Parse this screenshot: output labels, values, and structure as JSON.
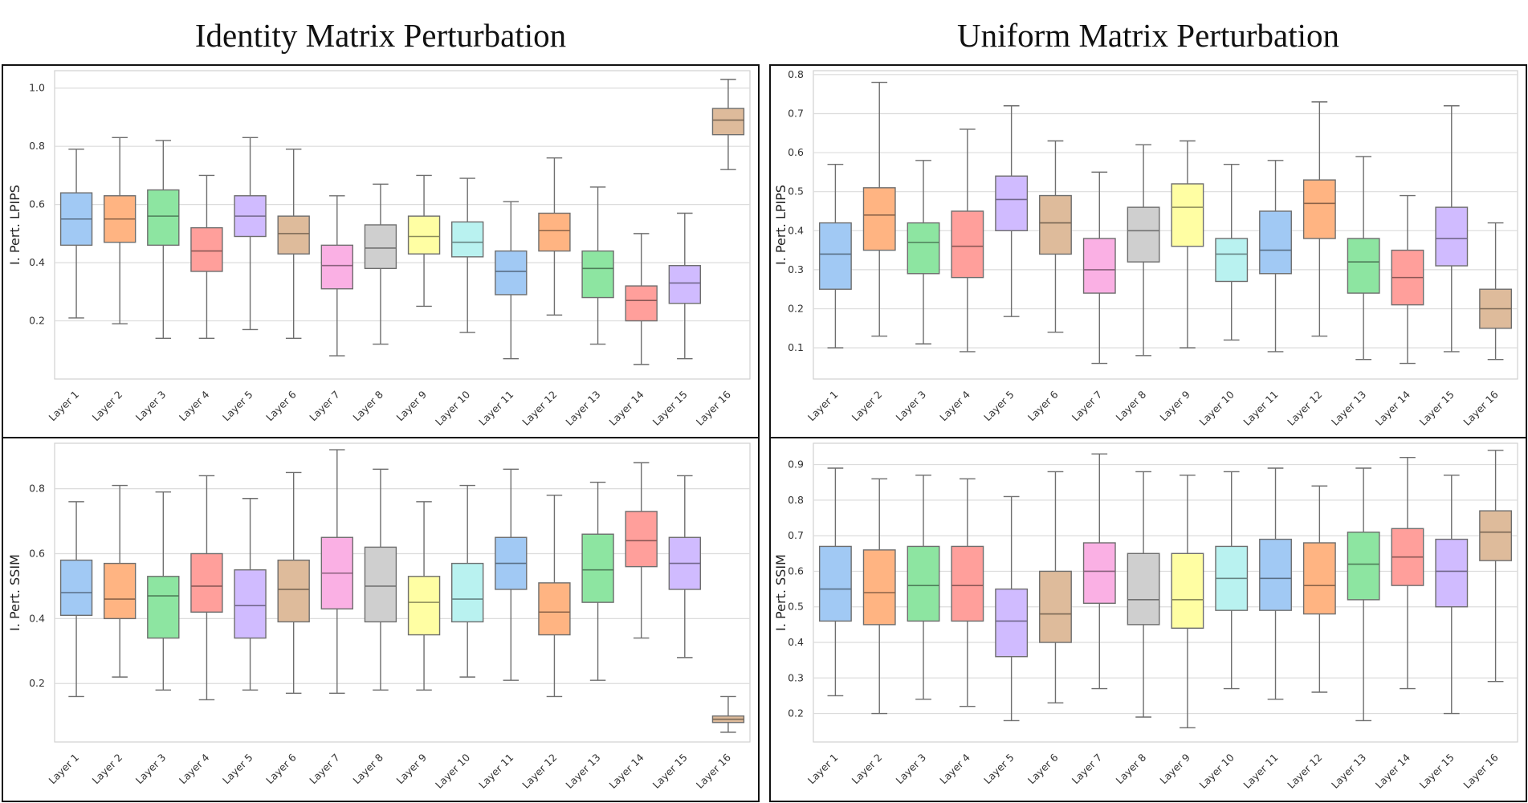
{
  "titles": {
    "left": "Identity Matrix Perturbation",
    "right": "Uniform Matrix Perturbation"
  },
  "palette": [
    "#a1c9f4",
    "#ffb482",
    "#8de5a1",
    "#ff9f9b",
    "#d0bbff",
    "#debb9b",
    "#fab0e4",
    "#cfcfcf",
    "#fffea3",
    "#b9f2f0",
    "#a1c9f4",
    "#ffb482",
    "#8de5a1",
    "#ff9f9b",
    "#d0bbff",
    "#debb9b"
  ],
  "chart_data": [
    {
      "id": "identity-lpips",
      "type": "box",
      "title": "Identity Matrix Perturbation",
      "ylabel": "I. Pert. LPIPS",
      "ylim": [
        0.0,
        1.06
      ],
      "yticks": [
        0.2,
        0.4,
        0.6,
        0.8,
        1.0
      ],
      "ytick_labels": [
        "0.2",
        "0.4",
        "0.6",
        "0.8",
        "1.0"
      ],
      "categories": [
        "Layer 1",
        "Layer 2",
        "Layer 3",
        "Layer 4",
        "Layer 5",
        "Layer 6",
        "Layer 7",
        "Layer 8",
        "Layer 9",
        "Layer 10",
        "Layer 11",
        "Layer 12",
        "Layer 13",
        "Layer 14",
        "Layer 15",
        "Layer 16"
      ],
      "boxes": [
        {
          "min": 0.21,
          "q1": 0.46,
          "median": 0.55,
          "q3": 0.64,
          "max": 0.79
        },
        {
          "min": 0.19,
          "q1": 0.47,
          "median": 0.55,
          "q3": 0.63,
          "max": 0.83
        },
        {
          "min": 0.14,
          "q1": 0.46,
          "median": 0.56,
          "q3": 0.65,
          "max": 0.82
        },
        {
          "min": 0.14,
          "q1": 0.37,
          "median": 0.44,
          "q3": 0.52,
          "max": 0.7
        },
        {
          "min": 0.17,
          "q1": 0.49,
          "median": 0.56,
          "q3": 0.63,
          "max": 0.83
        },
        {
          "min": 0.14,
          "q1": 0.43,
          "median": 0.5,
          "q3": 0.56,
          "max": 0.79
        },
        {
          "min": 0.08,
          "q1": 0.31,
          "median": 0.39,
          "q3": 0.46,
          "max": 0.63
        },
        {
          "min": 0.12,
          "q1": 0.38,
          "median": 0.45,
          "q3": 0.53,
          "max": 0.67
        },
        {
          "min": 0.25,
          "q1": 0.43,
          "median": 0.49,
          "q3": 0.56,
          "max": 0.7
        },
        {
          "min": 0.16,
          "q1": 0.42,
          "median": 0.47,
          "q3": 0.54,
          "max": 0.69
        },
        {
          "min": 0.07,
          "q1": 0.29,
          "median": 0.37,
          "q3": 0.44,
          "max": 0.61
        },
        {
          "min": 0.22,
          "q1": 0.44,
          "median": 0.51,
          "q3": 0.57,
          "max": 0.76
        },
        {
          "min": 0.12,
          "q1": 0.28,
          "median": 0.38,
          "q3": 0.44,
          "max": 0.66
        },
        {
          "min": 0.05,
          "q1": 0.2,
          "median": 0.27,
          "q3": 0.32,
          "max": 0.5
        },
        {
          "min": 0.07,
          "q1": 0.26,
          "median": 0.33,
          "q3": 0.39,
          "max": 0.57
        },
        {
          "min": 0.72,
          "q1": 0.84,
          "median": 0.89,
          "q3": 0.93,
          "max": 1.03
        }
      ]
    },
    {
      "id": "identity-ssim",
      "type": "box",
      "title": "",
      "ylabel": "I. Pert. SSIM",
      "ylim": [
        0.02,
        0.94
      ],
      "yticks": [
        0.2,
        0.4,
        0.6,
        0.8
      ],
      "ytick_labels": [
        "0.2",
        "0.4",
        "0.6",
        "0.8"
      ],
      "categories": [
        "Layer 1",
        "Layer 2",
        "Layer 3",
        "Layer 4",
        "Layer 5",
        "Layer 6",
        "Layer 7",
        "Layer 8",
        "Layer 9",
        "Layer 10",
        "Layer 11",
        "Layer 12",
        "Layer 13",
        "Layer 14",
        "Layer 15",
        "Layer 16"
      ],
      "boxes": [
        {
          "min": 0.16,
          "q1": 0.41,
          "median": 0.48,
          "q3": 0.58,
          "max": 0.76
        },
        {
          "min": 0.22,
          "q1": 0.4,
          "median": 0.46,
          "q3": 0.57,
          "max": 0.81
        },
        {
          "min": 0.18,
          "q1": 0.34,
          "median": 0.47,
          "q3": 0.53,
          "max": 0.79
        },
        {
          "min": 0.15,
          "q1": 0.42,
          "median": 0.5,
          "q3": 0.6,
          "max": 0.84
        },
        {
          "min": 0.18,
          "q1": 0.34,
          "median": 0.44,
          "q3": 0.55,
          "max": 0.77
        },
        {
          "min": 0.17,
          "q1": 0.39,
          "median": 0.49,
          "q3": 0.58,
          "max": 0.85
        },
        {
          "min": 0.17,
          "q1": 0.43,
          "median": 0.54,
          "q3": 0.65,
          "max": 0.92
        },
        {
          "min": 0.18,
          "q1": 0.39,
          "median": 0.5,
          "q3": 0.62,
          "max": 0.86
        },
        {
          "min": 0.18,
          "q1": 0.35,
          "median": 0.45,
          "q3": 0.53,
          "max": 0.76
        },
        {
          "min": 0.22,
          "q1": 0.39,
          "median": 0.46,
          "q3": 0.57,
          "max": 0.81
        },
        {
          "min": 0.21,
          "q1": 0.49,
          "median": 0.57,
          "q3": 0.65,
          "max": 0.86
        },
        {
          "min": 0.16,
          "q1": 0.35,
          "median": 0.42,
          "q3": 0.51,
          "max": 0.78
        },
        {
          "min": 0.21,
          "q1": 0.45,
          "median": 0.55,
          "q3": 0.66,
          "max": 0.82
        },
        {
          "min": 0.34,
          "q1": 0.56,
          "median": 0.64,
          "q3": 0.73,
          "max": 0.88
        },
        {
          "min": 0.28,
          "q1": 0.49,
          "median": 0.57,
          "q3": 0.65,
          "max": 0.84
        },
        {
          "min": 0.05,
          "q1": 0.08,
          "median": 0.09,
          "q3": 0.1,
          "max": 0.16
        }
      ]
    },
    {
      "id": "uniform-lpips",
      "type": "box",
      "title": "Uniform Matrix Perturbation",
      "ylabel": "I. Pert. LPIPS",
      "ylim": [
        0.02,
        0.81
      ],
      "yticks": [
        0.1,
        0.2,
        0.3,
        0.4,
        0.5,
        0.6,
        0.7,
        0.8
      ],
      "ytick_labels": [
        "0.1",
        "0.2",
        "0.3",
        "0.4",
        "0.5",
        "0.6",
        "0.7",
        "0.8"
      ],
      "categories": [
        "Layer 1",
        "Layer 2",
        "Layer 3",
        "Layer 4",
        "Layer 5",
        "Layer 6",
        "Layer 7",
        "Layer 8",
        "Layer 9",
        "Layer 10",
        "Layer 11",
        "Layer 12",
        "Layer 13",
        "Layer 14",
        "Layer 15",
        "Layer 16"
      ],
      "boxes": [
        {
          "min": 0.1,
          "q1": 0.25,
          "median": 0.34,
          "q3": 0.42,
          "max": 0.57
        },
        {
          "min": 0.13,
          "q1": 0.35,
          "median": 0.44,
          "q3": 0.51,
          "max": 0.78
        },
        {
          "min": 0.11,
          "q1": 0.29,
          "median": 0.37,
          "q3": 0.42,
          "max": 0.58
        },
        {
          "min": 0.09,
          "q1": 0.28,
          "median": 0.36,
          "q3": 0.45,
          "max": 0.66
        },
        {
          "min": 0.18,
          "q1": 0.4,
          "median": 0.48,
          "q3": 0.54,
          "max": 0.72
        },
        {
          "min": 0.14,
          "q1": 0.34,
          "median": 0.42,
          "q3": 0.49,
          "max": 0.63
        },
        {
          "min": 0.06,
          "q1": 0.24,
          "median": 0.3,
          "q3": 0.38,
          "max": 0.55
        },
        {
          "min": 0.08,
          "q1": 0.32,
          "median": 0.4,
          "q3": 0.46,
          "max": 0.62
        },
        {
          "min": 0.1,
          "q1": 0.36,
          "median": 0.46,
          "q3": 0.52,
          "max": 0.63
        },
        {
          "min": 0.12,
          "q1": 0.27,
          "median": 0.34,
          "q3": 0.38,
          "max": 0.57
        },
        {
          "min": 0.09,
          "q1": 0.29,
          "median": 0.35,
          "q3": 0.45,
          "max": 0.58
        },
        {
          "min": 0.13,
          "q1": 0.38,
          "median": 0.47,
          "q3": 0.53,
          "max": 0.73
        },
        {
          "min": 0.07,
          "q1": 0.24,
          "median": 0.32,
          "q3": 0.38,
          "max": 0.59
        },
        {
          "min": 0.06,
          "q1": 0.21,
          "median": 0.28,
          "q3": 0.35,
          "max": 0.49
        },
        {
          "min": 0.09,
          "q1": 0.31,
          "median": 0.38,
          "q3": 0.46,
          "max": 0.72
        },
        {
          "min": 0.07,
          "q1": 0.15,
          "median": 0.2,
          "q3": 0.25,
          "max": 0.42
        }
      ]
    },
    {
      "id": "uniform-ssim",
      "type": "box",
      "title": "",
      "ylabel": "I. Pert. SSIM",
      "ylim": [
        0.12,
        0.96
      ],
      "yticks": [
        0.2,
        0.3,
        0.4,
        0.5,
        0.6,
        0.7,
        0.8,
        0.9
      ],
      "ytick_labels": [
        "0.2",
        "0.3",
        "0.4",
        "0.5",
        "0.6",
        "0.7",
        "0.8",
        "0.9"
      ],
      "categories": [
        "Layer 1",
        "Layer 2",
        "Layer 3",
        "Layer 4",
        "Layer 5",
        "Layer 6",
        "Layer 7",
        "Layer 8",
        "Layer 9",
        "Layer 10",
        "Layer 11",
        "Layer 12",
        "Layer 13",
        "Layer 14",
        "Layer 15",
        "Layer 16"
      ],
      "boxes": [
        {
          "min": 0.25,
          "q1": 0.46,
          "median": 0.55,
          "q3": 0.67,
          "max": 0.89
        },
        {
          "min": 0.2,
          "q1": 0.45,
          "median": 0.54,
          "q3": 0.66,
          "max": 0.86
        },
        {
          "min": 0.24,
          "q1": 0.46,
          "median": 0.56,
          "q3": 0.67,
          "max": 0.87
        },
        {
          "min": 0.22,
          "q1": 0.46,
          "median": 0.56,
          "q3": 0.67,
          "max": 0.86
        },
        {
          "min": 0.18,
          "q1": 0.36,
          "median": 0.46,
          "q3": 0.55,
          "max": 0.81
        },
        {
          "min": 0.23,
          "q1": 0.4,
          "median": 0.48,
          "q3": 0.6,
          "max": 0.88
        },
        {
          "min": 0.27,
          "q1": 0.51,
          "median": 0.6,
          "q3": 0.68,
          "max": 0.93
        },
        {
          "min": 0.19,
          "q1": 0.45,
          "median": 0.52,
          "q3": 0.65,
          "max": 0.88
        },
        {
          "min": 0.16,
          "q1": 0.44,
          "median": 0.52,
          "q3": 0.65,
          "max": 0.87
        },
        {
          "min": 0.27,
          "q1": 0.49,
          "median": 0.58,
          "q3": 0.67,
          "max": 0.88
        },
        {
          "min": 0.24,
          "q1": 0.49,
          "median": 0.58,
          "q3": 0.69,
          "max": 0.89
        },
        {
          "min": 0.26,
          "q1": 0.48,
          "median": 0.56,
          "q3": 0.68,
          "max": 0.84
        },
        {
          "min": 0.18,
          "q1": 0.52,
          "median": 0.62,
          "q3": 0.71,
          "max": 0.89
        },
        {
          "min": 0.27,
          "q1": 0.56,
          "median": 0.64,
          "q3": 0.72,
          "max": 0.92
        },
        {
          "min": 0.2,
          "q1": 0.5,
          "median": 0.6,
          "q3": 0.69,
          "max": 0.87
        },
        {
          "min": 0.29,
          "q1": 0.63,
          "median": 0.71,
          "q3": 0.77,
          "max": 0.94
        }
      ]
    }
  ]
}
